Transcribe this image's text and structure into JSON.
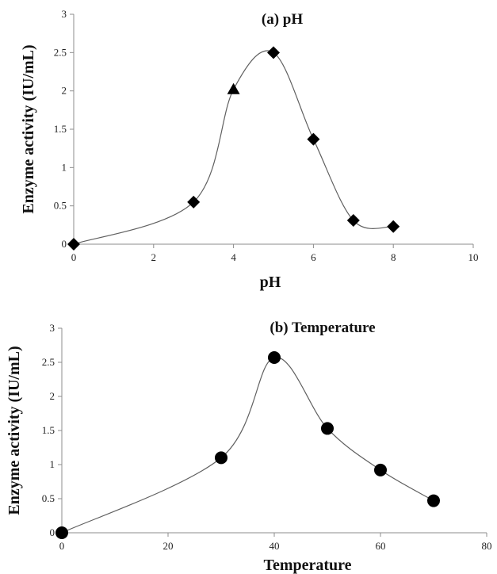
{
  "chart_data": [
    {
      "type": "scatter",
      "title": "(a) pH",
      "xlabel": "pH",
      "ylabel": "Enzyme activity (IU/mL)",
      "xlim": [
        0,
        10
      ],
      "ylim": [
        0,
        3
      ],
      "xticks": [
        0,
        2,
        4,
        6,
        8,
        10
      ],
      "yticks": [
        0,
        0.5,
        1,
        1.5,
        2,
        2.5,
        3
      ],
      "grid": false,
      "smooth_line": true,
      "marker": "diamond",
      "series": [
        {
          "x": [
            0,
            3,
            4,
            5,
            6,
            7,
            8
          ],
          "y": [
            0,
            0.55,
            2.02,
            2.5,
            1.37,
            0.31,
            0.23
          ],
          "markers": [
            "diamond",
            "diamond",
            "triangle",
            "diamond",
            "diamond",
            "diamond",
            "diamond"
          ]
        }
      ]
    },
    {
      "type": "scatter",
      "title": "(b) Temperature",
      "xlabel": "Temperature",
      "ylabel": "Enzyme activity (IU/mL)",
      "xlim": [
        0,
        80
      ],
      "ylim": [
        0,
        3
      ],
      "xticks": [
        0,
        20,
        40,
        60,
        80
      ],
      "yticks": [
        0,
        0.5,
        1,
        1.5,
        2,
        2.5,
        3
      ],
      "grid": false,
      "smooth_line": true,
      "marker": "circle",
      "series": [
        {
          "x": [
            0,
            30,
            40,
            50,
            60,
            70
          ],
          "y": [
            0,
            1.1,
            2.57,
            1.53,
            0.92,
            0.47
          ],
          "markers": [
            "circle",
            "circle",
            "circle",
            "circle",
            "circle",
            "circle"
          ]
        }
      ]
    }
  ]
}
